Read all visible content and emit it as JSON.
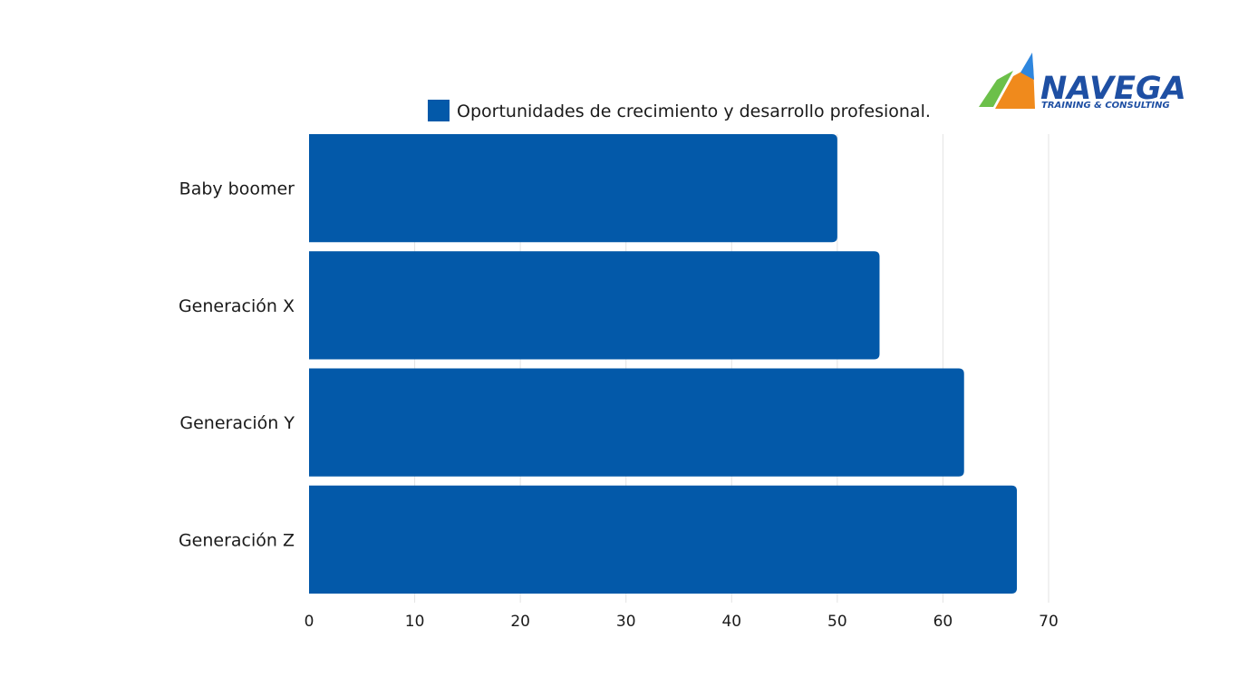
{
  "logo": {
    "name": "NAVEGA",
    "tagline": "TRAINING & CONSULTING",
    "colors": {
      "blue": "#1e4fa3",
      "orange": "#f08a1c",
      "green": "#6cc04a",
      "light_blue": "#2e86de"
    }
  },
  "chart_data": {
    "type": "bar",
    "orientation": "horizontal",
    "categories": [
      "Baby boomer",
      "Generación X",
      "Generación Y",
      "Generación Z"
    ],
    "series": [
      {
        "name": "Oportunidades de crecimiento y desarrollo profesional.",
        "values": [
          50,
          54,
          62,
          67
        ],
        "color": "#0359a9"
      }
    ],
    "xlim": [
      0,
      70
    ],
    "xticks": [
      0,
      10,
      20,
      30,
      40,
      50,
      60,
      70
    ],
    "grid": "vertical",
    "legend_position": "top-center",
    "title": "",
    "xlabel": "",
    "ylabel": ""
  }
}
